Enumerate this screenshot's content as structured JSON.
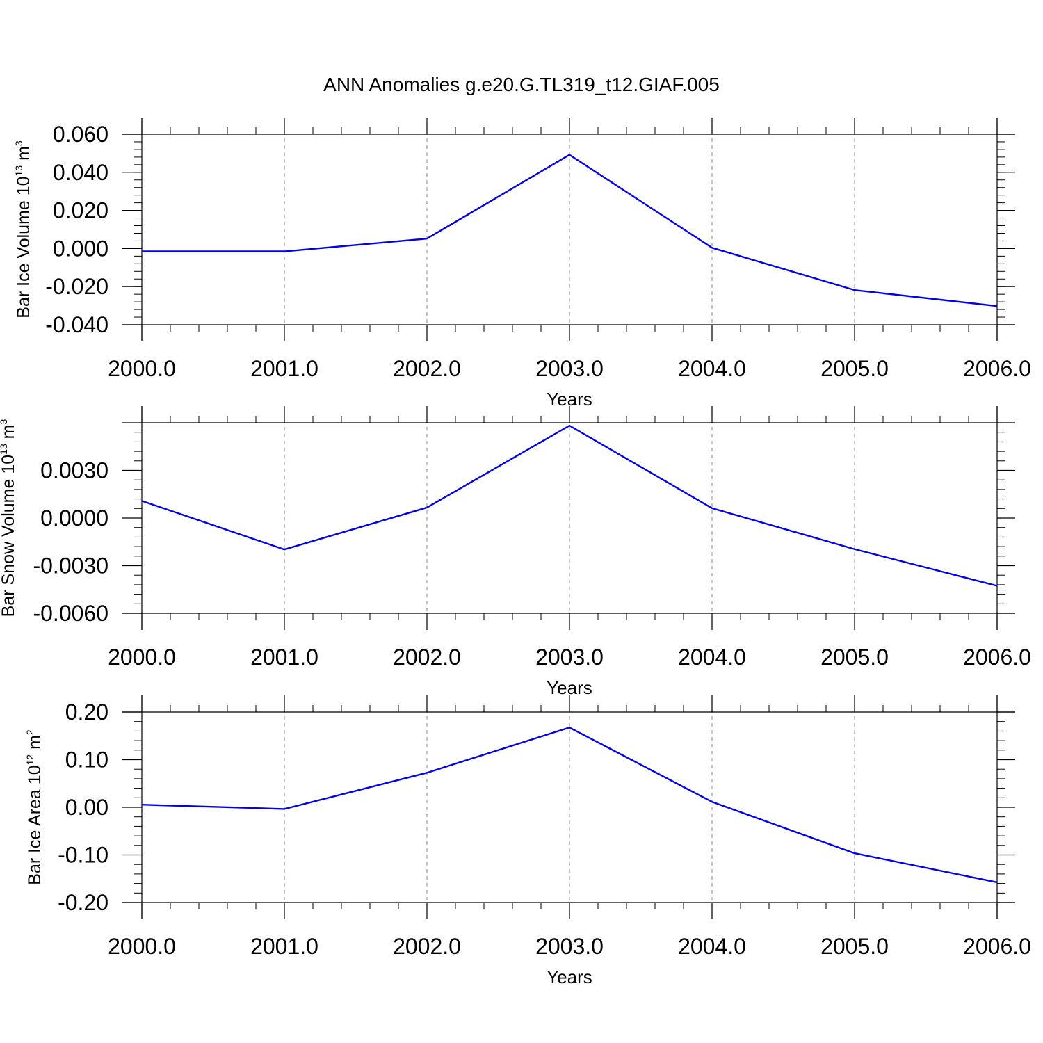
{
  "figure": {
    "title": "ANN Anomalies g.e20.G.TL319_t12.GIAF.005"
  },
  "colors": {
    "series_line": "#0000ee",
    "axis": "#000000",
    "grid": "#888888",
    "background": "#ffffff"
  },
  "chart_data": [
    {
      "type": "line",
      "title": "",
      "xlabel": "Years",
      "ylabel_parts": [
        "Bar Ice Volume 10",
        "13",
        " m",
        "3"
      ],
      "x": [
        2000,
        2001,
        2002,
        2003,
        2004,
        2005,
        2006
      ],
      "x_tick_labels": [
        "2000.0",
        "2001.0",
        "2002.0",
        "2003.0",
        "2004.0",
        "2005.0",
        "2006.0"
      ],
      "y_ticks": [
        0.06,
        0.04,
        0.02,
        0.0,
        -0.02,
        -0.04
      ],
      "y_tick_labels": [
        "0.060",
        "0.040",
        "0.020",
        "0.000",
        "-0.020",
        "-0.040"
      ],
      "xlim": [
        2000,
        2006
      ],
      "ylim": [
        -0.04,
        0.06
      ],
      "grid": "vertical dashed",
      "series": [
        {
          "values": [
            -0.0015,
            -0.0015,
            0.0052,
            0.0492,
            0.0004,
            -0.0218,
            -0.0302
          ]
        }
      ]
    },
    {
      "type": "line",
      "title": "",
      "xlabel": "Years",
      "ylabel_parts": [
        "Bar Snow Volume 10",
        "13",
        " m",
        "3"
      ],
      "x": [
        2000,
        2001,
        2002,
        2003,
        2004,
        2005,
        2006
      ],
      "x_tick_labels": [
        "2000.0",
        "2001.0",
        "2002.0",
        "2003.0",
        "2004.0",
        "2005.0",
        "2006.0"
      ],
      "y_ticks": [
        0.003,
        0.0,
        -0.003,
        -0.006
      ],
      "y_tick_labels": [
        "0.0030",
        "0.0000",
        "-0.0030",
        "-0.0060"
      ],
      "xlim": [
        2000,
        2006
      ],
      "ylim": [
        -0.006,
        0.006
      ],
      "grid": "vertical dashed",
      "series": [
        {
          "values": [
            0.00108,
            -0.00198,
            0.00066,
            0.00582,
            0.00062,
            -0.00196,
            -0.00427
          ]
        }
      ]
    },
    {
      "type": "line",
      "title": "",
      "xlabel": "Years",
      "ylabel_parts": [
        "Bar Ice Area 10",
        "12",
        " m",
        "2"
      ],
      "x": [
        2000,
        2001,
        2002,
        2003,
        2004,
        2005,
        2006
      ],
      "x_tick_labels": [
        "2000.0",
        "2001.0",
        "2002.0",
        "2003.0",
        "2004.0",
        "2005.0",
        "2006.0"
      ],
      "y_ticks": [
        0.2,
        0.1,
        0.0,
        -0.1,
        -0.2
      ],
      "y_tick_labels": [
        "0.20",
        "0.10",
        "0.00",
        "-0.10",
        "-0.20"
      ],
      "xlim": [
        2000,
        2006
      ],
      "ylim": [
        -0.2,
        0.2
      ],
      "grid": "vertical dashed",
      "series": [
        {
          "values": [
            0.0055,
            -0.0035,
            0.0725,
            0.1675,
            0.0115,
            -0.0965,
            -0.1575
          ]
        }
      ]
    }
  ]
}
